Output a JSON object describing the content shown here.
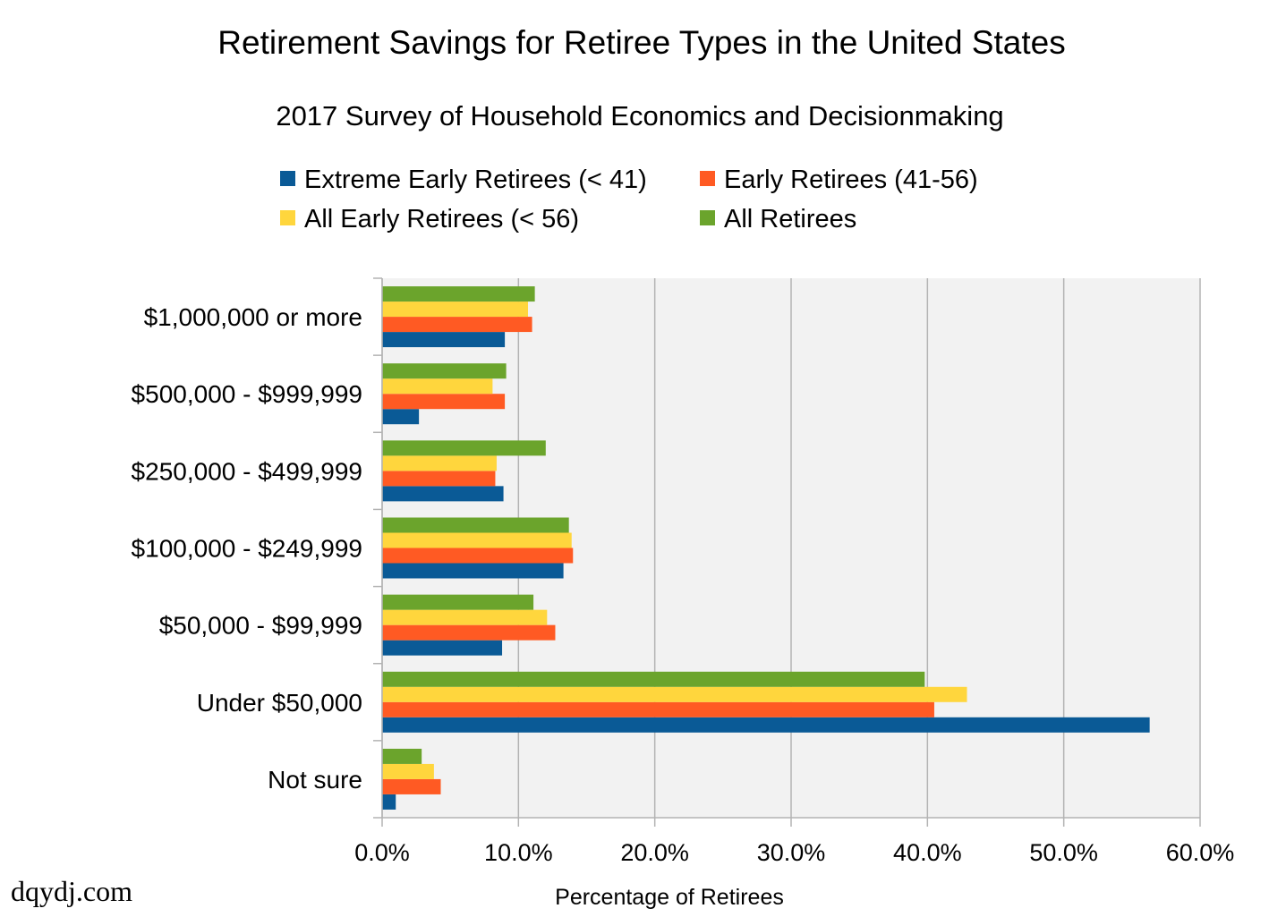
{
  "chart_data": {
    "type": "bar",
    "orientation": "horizontal",
    "title": "Retirement Savings for Retiree Types in the United States",
    "subtitle": "2017 Survey of Household Economics and Decisionmaking",
    "xlabel": "Percentage of Retirees",
    "ylabel": "",
    "xlim": [
      0,
      60
    ],
    "x_ticks": [
      "0.0%",
      "10.0%",
      "20.0%",
      "30.0%",
      "40.0%",
      "50.0%",
      "60.0%"
    ],
    "grid": true,
    "legend_position": "top",
    "categories": [
      "$1,000,000 or more",
      "$500,000 - $999,999",
      "$250,000 - $499,999",
      "$100,000 - $249,999",
      "$50,000 - $99,999",
      "Under $50,000",
      "Not sure"
    ],
    "series": [
      {
        "name": "Extreme Early Retirees (< 41)",
        "color": "#0a5a96",
        "values": [
          9.0,
          2.7,
          8.9,
          13.3,
          8.8,
          56.3,
          1.0
        ]
      },
      {
        "name": "Early Retirees (41-56)",
        "color": "#ff5a23",
        "values": [
          11.0,
          9.0,
          8.3,
          14.0,
          12.7,
          40.5,
          4.3
        ]
      },
      {
        "name": "All Early Retirees (< 56)",
        "color": "#ffd63d",
        "values": [
          10.7,
          8.1,
          8.4,
          13.9,
          12.1,
          42.9,
          3.8
        ]
      },
      {
        "name": "All Retirees",
        "color": "#6ba42c",
        "values": [
          11.2,
          9.1,
          12.0,
          13.7,
          11.1,
          39.8,
          2.9
        ]
      }
    ]
  },
  "watermark": "dqydj.com"
}
